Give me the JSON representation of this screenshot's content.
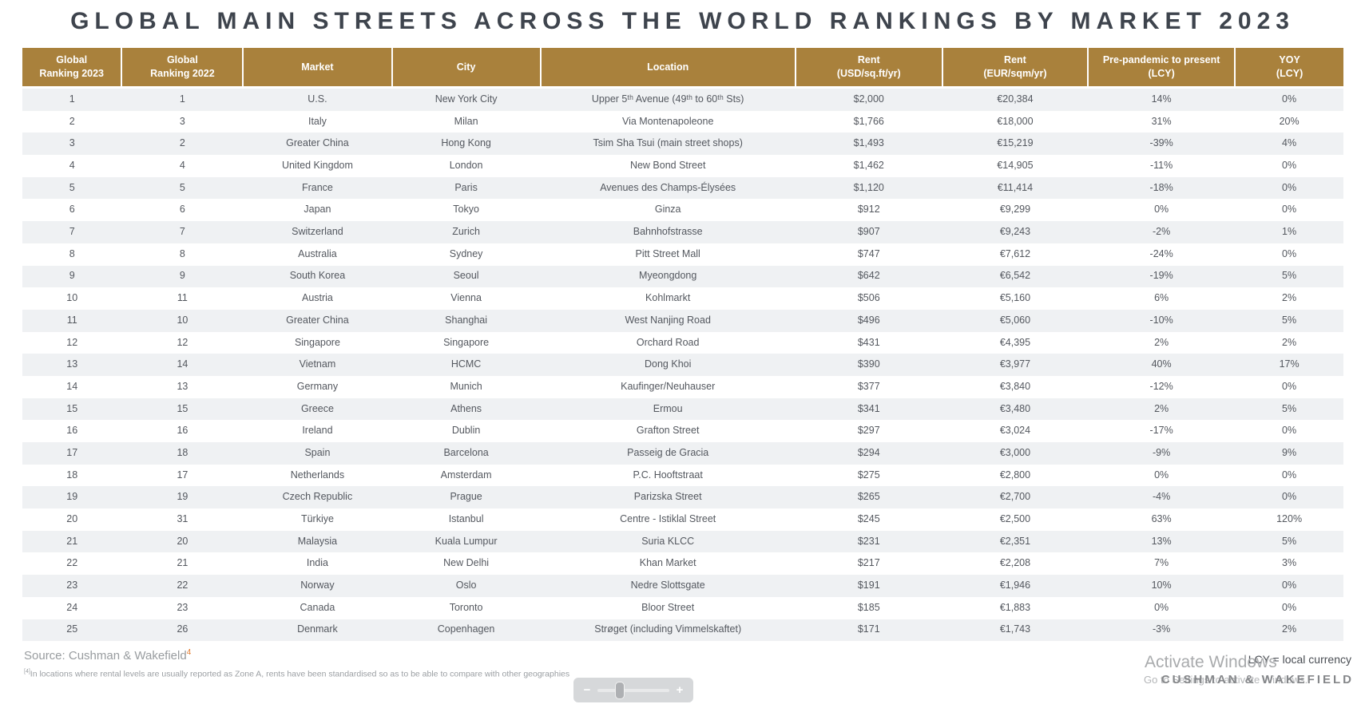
{
  "title": "GLOBAL MAIN STREETS ACROSS THE WORLD RANKINGS BY MARKET 2023",
  "colors": {
    "header_bg": "#a9813c",
    "title_text": "#3e444d",
    "body_text": "#54585f",
    "stripe": "#eff1f3",
    "footnote_ref_orange": "#e17a2d",
    "footer_gray": "#9b9fa3"
  },
  "table": {
    "columns": [
      {
        "id": "ranking-2023",
        "label": "Global\nRanking 2023"
      },
      {
        "id": "ranking-2022",
        "label": "Global\nRanking 2022"
      },
      {
        "id": "market",
        "label": "Market"
      },
      {
        "id": "city",
        "label": "City"
      },
      {
        "id": "location",
        "label": "Location"
      },
      {
        "id": "rent-usd",
        "label": "Rent\n(USD/sq.ft/yr)"
      },
      {
        "id": "rent-eur",
        "label": "Rent\n(EUR/sqm/yr)"
      },
      {
        "id": "pre-pandemic",
        "label": "Pre-pandemic to present\n(LCY)"
      },
      {
        "id": "yoy",
        "label": "YOY\n(LCY)"
      }
    ],
    "rows": [
      [
        "1",
        "1",
        "U.S.",
        "New York City",
        "Upper 5ᵗʰ Avenue (49ᵗʰ to 60ᵗʰ Sts)",
        "$2,000",
        "€20,384",
        "14%",
        "0%"
      ],
      [
        "2",
        "3",
        "Italy",
        "Milan",
        "Via Montenapoleone",
        "$1,766",
        "€18,000",
        "31%",
        "20%"
      ],
      [
        "3",
        "2",
        "Greater China",
        "Hong Kong",
        "Tsim Sha Tsui (main street shops)",
        "$1,493",
        "€15,219",
        "-39%",
        "4%"
      ],
      [
        "4",
        "4",
        "United Kingdom",
        "London",
        "New Bond Street",
        "$1,462",
        "€14,905",
        "-11%",
        "0%"
      ],
      [
        "5",
        "5",
        "France",
        "Paris",
        "Avenues des Champs-Élysées",
        "$1,120",
        "€11,414",
        "-18%",
        "0%"
      ],
      [
        "6",
        "6",
        "Japan",
        "Tokyo",
        "Ginza",
        "$912",
        "€9,299",
        "0%",
        "0%"
      ],
      [
        "7",
        "7",
        "Switzerland",
        "Zurich",
        "Bahnhofstrasse",
        "$907",
        "€9,243",
        "-2%",
        "1%"
      ],
      [
        "8",
        "8",
        "Australia",
        "Sydney",
        "Pitt Street Mall",
        "$747",
        "€7,612",
        "-24%",
        "0%"
      ],
      [
        "9",
        "9",
        "South Korea",
        "Seoul",
        "Myeongdong",
        "$642",
        "€6,542",
        "-19%",
        "5%"
      ],
      [
        "10",
        "11",
        "Austria",
        "Vienna",
        "Kohlmarkt",
        "$506",
        "€5,160",
        "6%",
        "2%"
      ],
      [
        "11",
        "10",
        "Greater China",
        "Shanghai",
        "West Nanjing Road",
        "$496",
        "€5,060",
        "-10%",
        "5%"
      ],
      [
        "12",
        "12",
        "Singapore",
        "Singapore",
        "Orchard Road",
        "$431",
        "€4,395",
        "2%",
        "2%"
      ],
      [
        "13",
        "14",
        "Vietnam",
        "HCMC",
        "Dong Khoi",
        "$390",
        "€3,977",
        "40%",
        "17%"
      ],
      [
        "14",
        "13",
        "Germany",
        "Munich",
        "Kaufinger/Neuhauser",
        "$377",
        "€3,840",
        "-12%",
        "0%"
      ],
      [
        "15",
        "15",
        "Greece",
        "Athens",
        "Ermou",
        "$341",
        "€3,480",
        "2%",
        "5%"
      ],
      [
        "16",
        "16",
        "Ireland",
        "Dublin",
        "Grafton Street",
        "$297",
        "€3,024",
        "-17%",
        "0%"
      ],
      [
        "17",
        "18",
        "Spain",
        "Barcelona",
        "Passeig de Gracia",
        "$294",
        "€3,000",
        "-9%",
        "9%"
      ],
      [
        "18",
        "17",
        "Netherlands",
        "Amsterdam",
        "P.C. Hooftstraat",
        "$275",
        "€2,800",
        "0%",
        "0%"
      ],
      [
        "19",
        "19",
        "Czech Republic",
        "Prague",
        "Parizska Street",
        "$265",
        "€2,700",
        "-4%",
        "0%"
      ],
      [
        "20",
        "31",
        "Türkiye",
        "Istanbul",
        "Centre - Istiklal Street",
        "$245",
        "€2,500",
        "63%",
        "120%"
      ],
      [
        "21",
        "20",
        "Malaysia",
        "Kuala Lumpur",
        "Suria KLCC",
        "$231",
        "€2,351",
        "13%",
        "5%"
      ],
      [
        "22",
        "21",
        "India",
        "New Delhi",
        "Khan Market",
        "$217",
        "€2,208",
        "7%",
        "3%"
      ],
      [
        "23",
        "22",
        "Norway",
        "Oslo",
        "Nedre Slottsgate",
        "$191",
        "€1,946",
        "10%",
        "0%"
      ],
      [
        "24",
        "23",
        "Canada",
        "Toronto",
        "Bloor Street",
        "$185",
        "€1,883",
        "0%",
        "0%"
      ],
      [
        "25",
        "26",
        "Denmark",
        "Copenhagen",
        "Strøget (including Vimmelskaftet)",
        "$171",
        "€1,743",
        "-3%",
        "2%"
      ]
    ]
  },
  "footer": {
    "source": "Source: Cushman & Wakefield",
    "source_ref": "4",
    "footnote_marker": "[4]",
    "footnote_text": "In locations where rental levels are usually reported as Zone A, rents have been standardised so as to be able to compare with other geographies",
    "lcy_note": "LCY = local currency",
    "logo": "CUSHMAN & WAKEFIELD"
  },
  "watermark": {
    "line1": "Activate Windows",
    "line2": "Go to Settings to activate Windows."
  },
  "slider": {
    "minus": "−",
    "plus": "+"
  }
}
